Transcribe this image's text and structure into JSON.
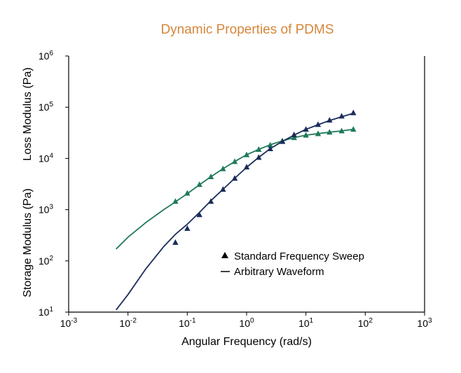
{
  "chart_data": {
    "type": "line",
    "title": "Dynamic Properties of PDMS",
    "xlabel": "Angular Frequency (rad/s)",
    "ylabel_top": "Loss Modulus (Pa)",
    "ylabel_bottom": "Storage Modulus (Pa)",
    "xscale": "log",
    "yscale": "log",
    "xlim": [
      0.001,
      1000
    ],
    "ylim": [
      10,
      1000000
    ],
    "x_ticks": [
      {
        "value": 0.001,
        "base": "10",
        "exp": "-3"
      },
      {
        "value": 0.01,
        "base": "10",
        "exp": "-2"
      },
      {
        "value": 0.1,
        "base": "10",
        "exp": "-1"
      },
      {
        "value": 1,
        "base": "10",
        "exp": "0"
      },
      {
        "value": 10,
        "base": "10",
        "exp": "1"
      },
      {
        "value": 100,
        "base": "10",
        "exp": "2"
      },
      {
        "value": 1000,
        "base": "10",
        "exp": "3"
      }
    ],
    "y_ticks": [
      {
        "value": 10,
        "base": "10",
        "exp": "1"
      },
      {
        "value": 100,
        "base": "10",
        "exp": "2"
      },
      {
        "value": 1000,
        "base": "10",
        "exp": "3"
      },
      {
        "value": 10000,
        "base": "10",
        "exp": "4"
      },
      {
        "value": 100000,
        "base": "10",
        "exp": "5"
      },
      {
        "value": 1000000,
        "base": "10",
        "exp": "6"
      }
    ],
    "legend": {
      "position": "center-right",
      "items": [
        {
          "marker": "triangle",
          "label": "Standard Frequency Sweep"
        },
        {
          "marker": "line",
          "label": "Arbitrary Waveform"
        }
      ]
    },
    "colors": {
      "title": "#d4873a",
      "loss": "#1f7a5a",
      "storage": "#1a2d5a",
      "axis": "#000000"
    },
    "series": [
      {
        "key": "loss_curve",
        "kind": "line",
        "color": "#1f7a5a",
        "x": [
          0.0063,
          0.01,
          0.02,
          0.04,
          0.063,
          0.1,
          0.16,
          0.25,
          0.4,
          0.63,
          1,
          1.6,
          2.5,
          4,
          6.3,
          10,
          16,
          25,
          40,
          63
        ],
        "y": [
          170,
          290,
          560,
          1000,
          1420,
          2050,
          3050,
          4400,
          6300,
          8700,
          11800,
          15000,
          18500,
          22000,
          25500,
          28500,
          30500,
          32500,
          34500,
          37000
        ]
      },
      {
        "key": "loss_points",
        "kind": "scatter",
        "marker": "triangle",
        "color": "#1f7a5a",
        "x": [
          0.063,
          0.1,
          0.16,
          0.25,
          0.4,
          0.63,
          1,
          1.6,
          2.5,
          4,
          6.3,
          10,
          16,
          25,
          40,
          63
        ],
        "y": [
          1450,
          2100,
          3100,
          4400,
          6300,
          8700,
          11800,
          15000,
          18300,
          22000,
          25500,
          28500,
          30500,
          32500,
          34500,
          37000
        ]
      },
      {
        "key": "storage_curve",
        "kind": "line",
        "color": "#1a2d5a",
        "x": [
          0.0063,
          0.01,
          0.02,
          0.04,
          0.063,
          0.1,
          0.16,
          0.25,
          0.4,
          0.63,
          1,
          1.6,
          2.5,
          4,
          6.3,
          10,
          16,
          25,
          40,
          63
        ],
        "y": [
          11,
          22,
          70,
          190,
          330,
          520,
          880,
          1500,
          2500,
          4100,
          6700,
          10500,
          15500,
          21500,
          28500,
          37000,
          45500,
          55000,
          65000,
          76000
        ]
      },
      {
        "key": "storage_points",
        "kind": "scatter",
        "marker": "triangle",
        "color": "#1a2d5a",
        "x": [
          0.063,
          0.1,
          0.16,
          0.25,
          0.4,
          0.63,
          1,
          1.6,
          2.5,
          4,
          6.3,
          10,
          16,
          25,
          40,
          63
        ],
        "y": [
          230,
          430,
          800,
          1450,
          2500,
          4100,
          6800,
          10500,
          15500,
          21500,
          29000,
          37000,
          46000,
          56000,
          67000,
          78000
        ]
      }
    ]
  }
}
